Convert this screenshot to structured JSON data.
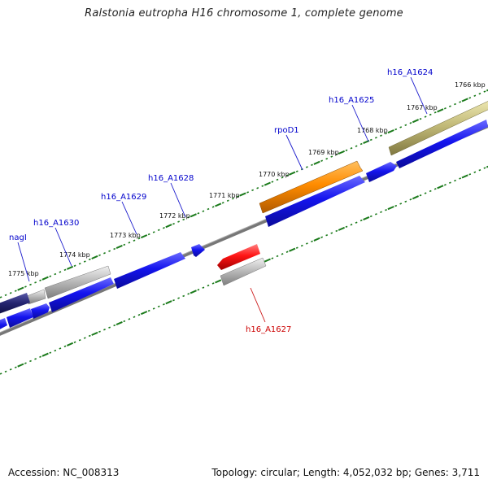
{
  "title": "Ralstonia eutropha H16 chromosome 1, complete genome",
  "footer": {
    "accession": "Accession: NC_008313",
    "topology": "Topology: circular; Length: 4,052,032 bp; Genes: 3,711"
  },
  "colors": {
    "forward_gene": "#1212e6",
    "highlight_gene": "#ff8c00",
    "reverse_highlight_gene": "#ff1010",
    "other_feature": "#b0b0b0",
    "olive_feature": "#b0a860",
    "navy_feature": "#202070",
    "backbone": "#7a7a7a",
    "tick": "#1a7a1a",
    "label_blue": "#0000cc",
    "label_red": "#cc0000"
  },
  "kbp_labels": [
    "1766 kbp",
    "1767 kbp",
    "1768 kbp",
    "1769 kbp",
    "1770 kbp",
    "1771 kbp",
    "1772 kbp",
    "1773 kbp",
    "1774 kbp",
    "1775 kbp"
  ],
  "gene_labels": [
    {
      "name": "h16_A1624",
      "strand": "forward"
    },
    {
      "name": "h16_A1625",
      "strand": "forward"
    },
    {
      "name": "rpoD1",
      "strand": "forward"
    },
    {
      "name": "h16_A1628",
      "strand": "forward"
    },
    {
      "name": "h16_A1629",
      "strand": "forward"
    },
    {
      "name": "h16_A1630",
      "strand": "forward"
    },
    {
      "name": "nagI",
      "strand": "forward"
    },
    {
      "name": "h16_A1627",
      "strand": "reverse"
    }
  ]
}
